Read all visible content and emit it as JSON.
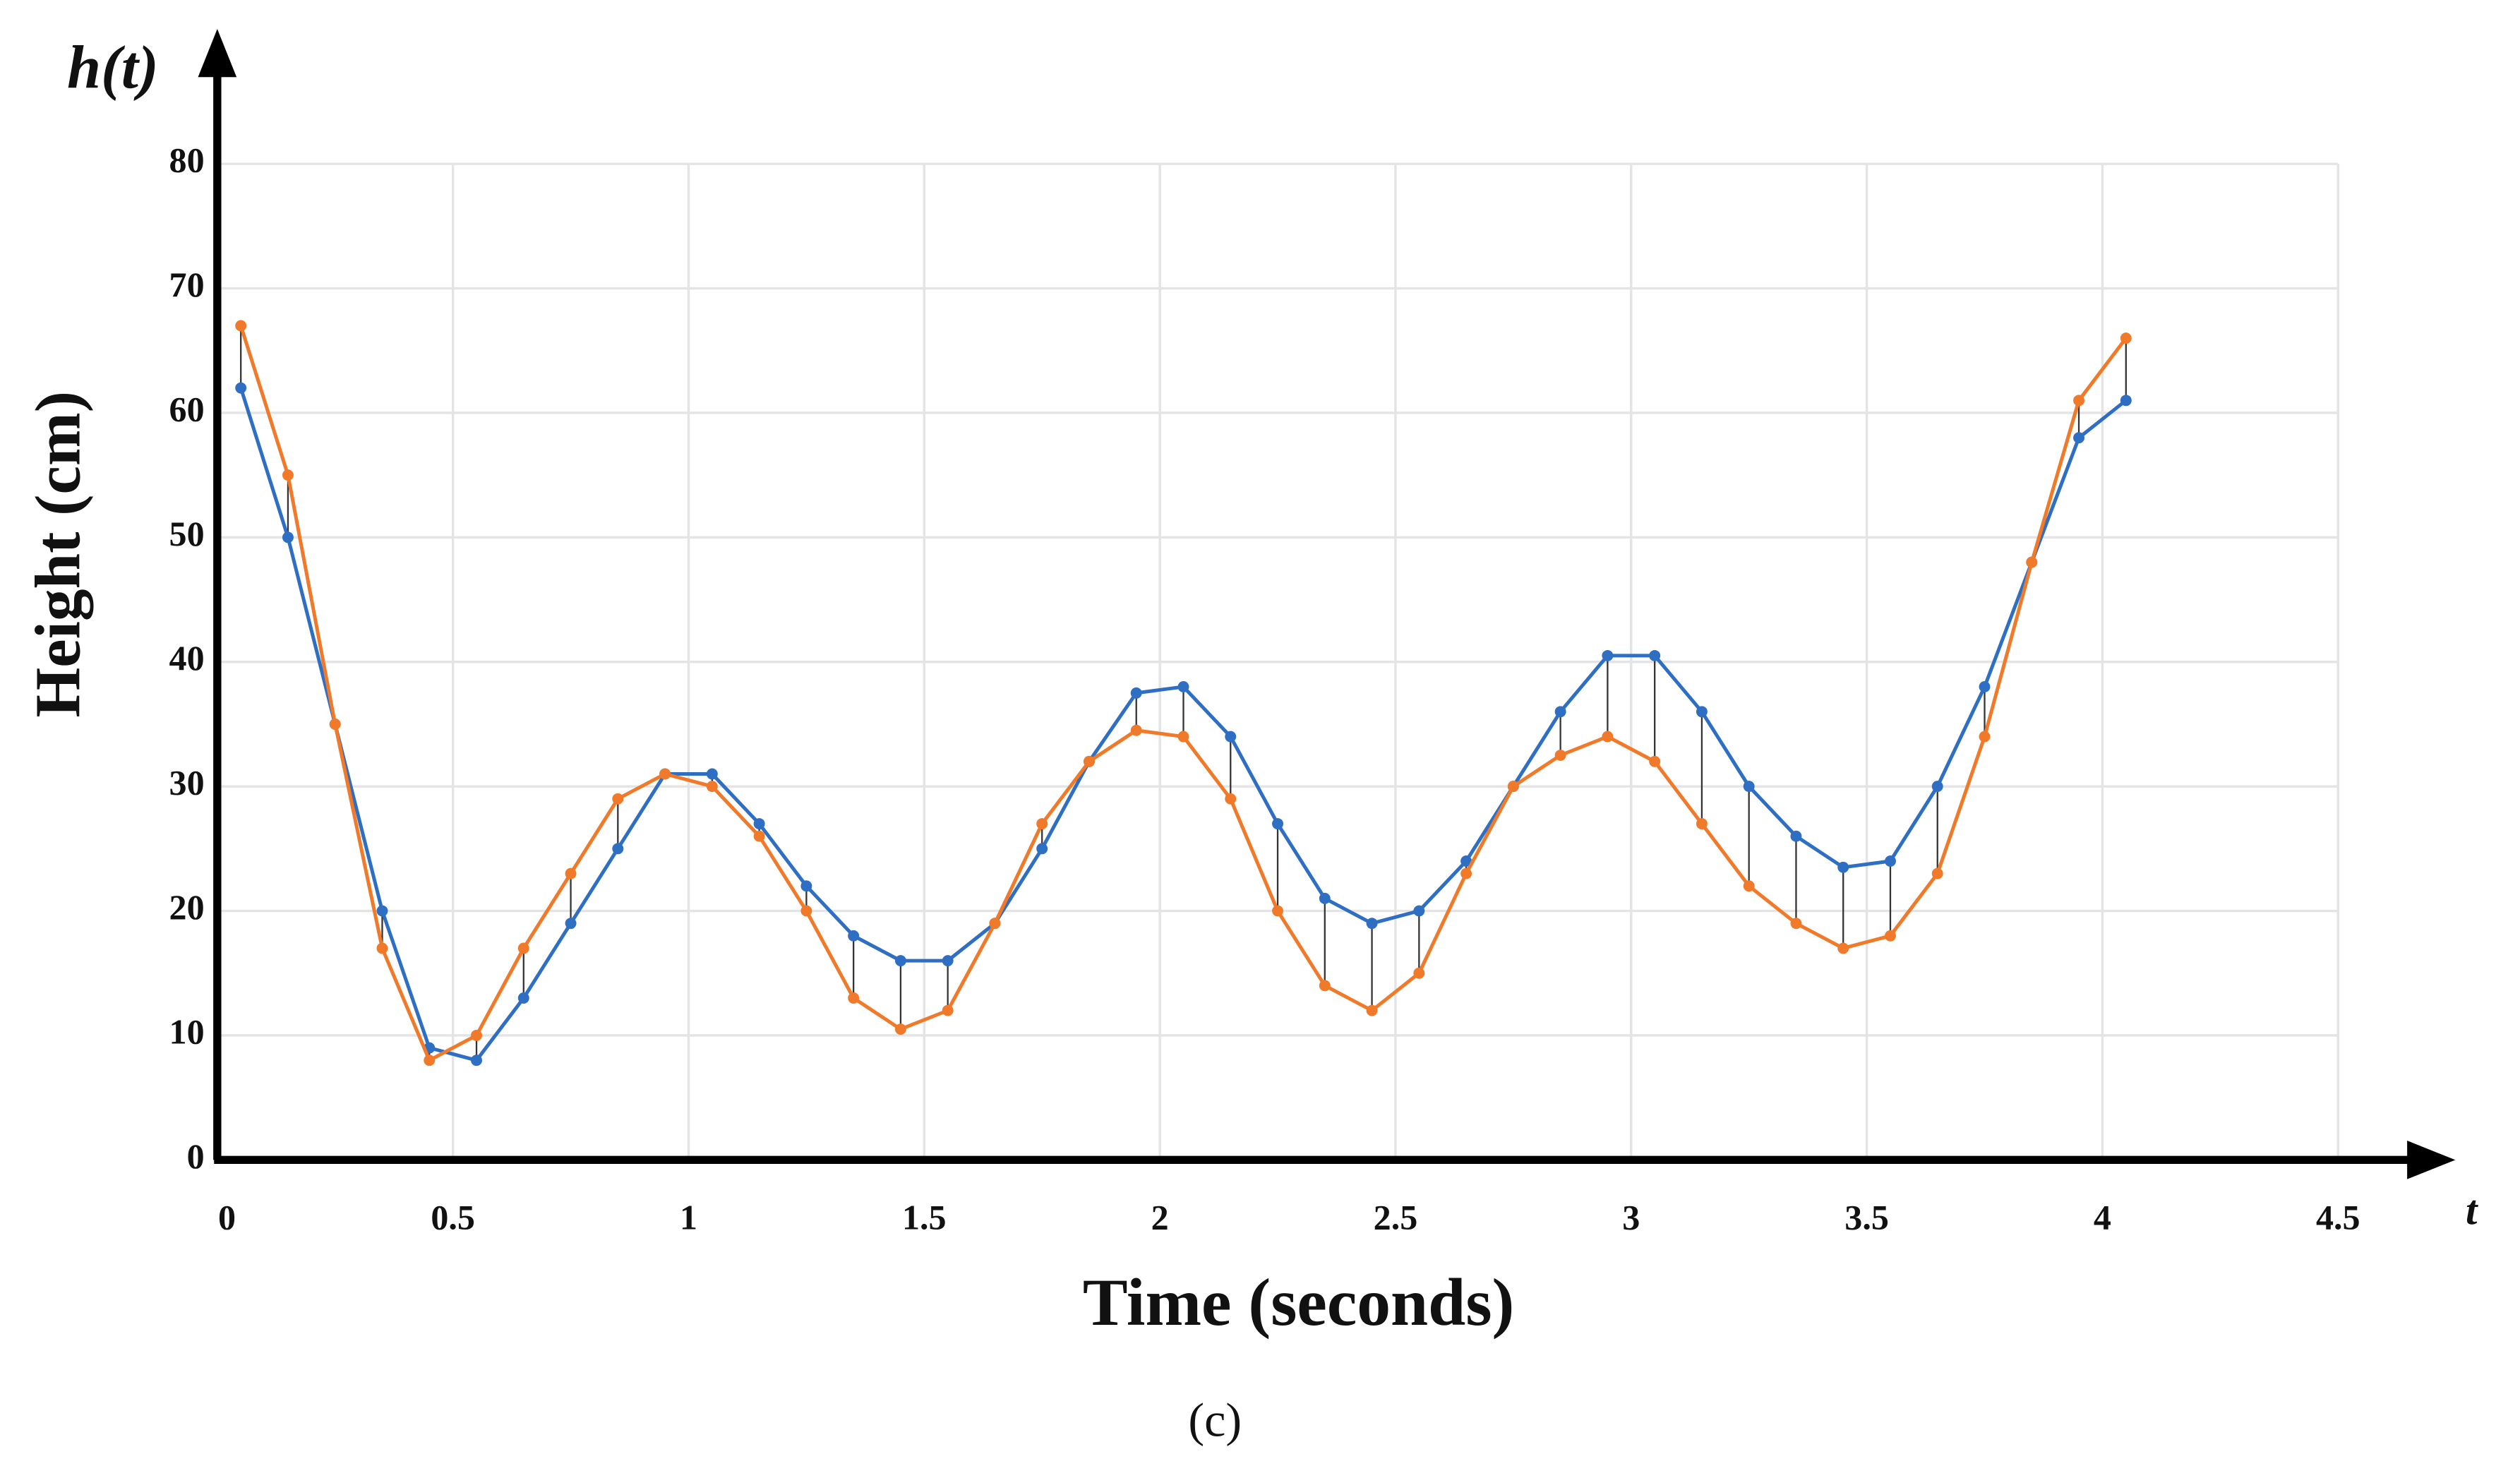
{
  "chart_data": {
    "type": "line",
    "y_axis_symbol": "h(t)",
    "x_axis_symbol": "t",
    "ylabel": "Height (cm)",
    "xlabel": "Time (seconds)",
    "caption": "(c)",
    "x": [
      0.05,
      0.15,
      0.25,
      0.35,
      0.45,
      0.55,
      0.65,
      0.75,
      0.85,
      0.95,
      1.05,
      1.15,
      1.25,
      1.35,
      1.45,
      1.55,
      1.65,
      1.75,
      1.85,
      1.95,
      2.05,
      2.15,
      2.25,
      2.35,
      2.45,
      2.55,
      2.65,
      2.75,
      2.85,
      2.95,
      3.05,
      3.15,
      3.25,
      3.35,
      3.45,
      3.55,
      3.65,
      3.75,
      3.85,
      3.95,
      4.05
    ],
    "series": [
      {
        "color": "#2e6fc4",
        "values": [
          62,
          50,
          35,
          20,
          9,
          8,
          13,
          19,
          25,
          31,
          31,
          27,
          22,
          18,
          16,
          16,
          19,
          25,
          32,
          37.5,
          38,
          34,
          27,
          21,
          19,
          20,
          24,
          30,
          36,
          40.5,
          40.5,
          36,
          30,
          26,
          23.5,
          24,
          30,
          38,
          48,
          58,
          61
        ]
      },
      {
        "color": "#f07a2a",
        "values": [
          67,
          55,
          35,
          17,
          8,
          10,
          17,
          23,
          29,
          31,
          30,
          26,
          20,
          13,
          10.5,
          12,
          19,
          27,
          32,
          34.5,
          34,
          29,
          20,
          14,
          12,
          15,
          23,
          30,
          32.5,
          34,
          32,
          27,
          22,
          19,
          17,
          18,
          23,
          34,
          48,
          61,
          66
        ]
      }
    ],
    "xlim": [
      0,
      4.5
    ],
    "ylim": [
      0,
      80
    ],
    "xticks": [
      0,
      0.5,
      1,
      1.5,
      2,
      2.5,
      3,
      3.5,
      4,
      4.5
    ],
    "yticks": [
      0,
      10,
      20,
      30,
      40,
      50,
      60,
      70,
      80
    ],
    "grid": true
  }
}
